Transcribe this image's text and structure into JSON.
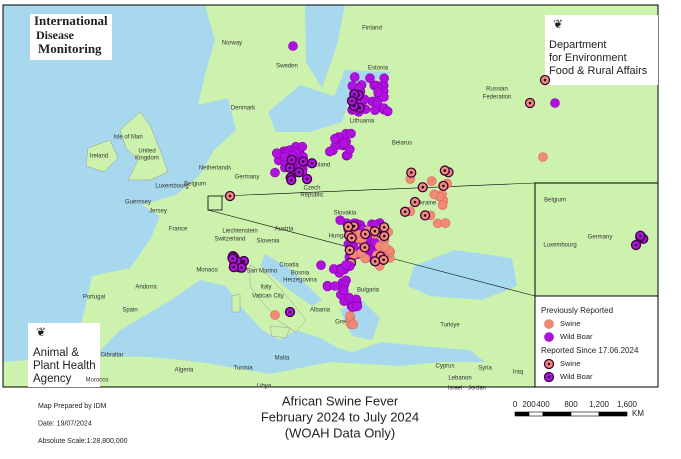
{
  "logos": {
    "idm": [
      "International",
      "Disease",
      "Monitoring"
    ],
    "defra": [
      "Department",
      "for Environment",
      "Food & Rural Affairs"
    ],
    "apha": [
      "Animal &",
      "Plant Health",
      "Agency"
    ]
  },
  "map_labels": [
    "Finland",
    "Norway",
    "Sweden",
    "Estonia",
    "Lithuania",
    "Russian",
    "Federation",
    "Ireland",
    "United",
    "Kingdom",
    "Isle of Man",
    "Denmark",
    "Netherlands",
    "Germany",
    "Belgium",
    "Luxembourg",
    "Guernsey",
    "Jersey",
    "Poland",
    "Belarus",
    "Czech",
    "Republic",
    "Slovakia",
    "Ukraine",
    "France",
    "Liechtenstein",
    "Switzerland",
    "Austria",
    "Slovenia",
    "Hungary",
    "Croatia",
    "Monaco",
    "San Marino",
    "Bosnia",
    "Herzegovina",
    "Italy",
    "Vatican City",
    "Bulgaria",
    "Andorra",
    "Portugal",
    "Spain",
    "Albania",
    "Greece",
    "Turkiye",
    "Gibraltar",
    "Morocco",
    "Algeria",
    "Tunisia",
    "Malta",
    "Libya",
    "Cyprus",
    "Syria",
    "Lebanon",
    "Israel",
    "Jordan",
    "Iraq"
  ],
  "inset_labels": [
    "Belgium",
    "Luxembourg",
    "Germany"
  ],
  "legend": {
    "previous": {
      "title": "Previously Reported",
      "items": [
        "Swine",
        "Wild Boar"
      ]
    },
    "recent": {
      "title": "Reported Since 17.06.2024",
      "items": [
        "Swine",
        "Wild Boar"
      ]
    }
  },
  "footer": {
    "prepared": "Map Prepared by IDM",
    "date": "Date: 19/07/2024",
    "scale": "Absolute Scale:1:28,800,000"
  },
  "title": [
    "African Swine Fever",
    "February 2024 to July 2024",
    "(WOAH Data Only)"
  ],
  "scale_bar": {
    "labels": [
      "0",
      "200",
      "400",
      "800",
      "1,200",
      "1,600"
    ],
    "unit": "KM"
  }
}
